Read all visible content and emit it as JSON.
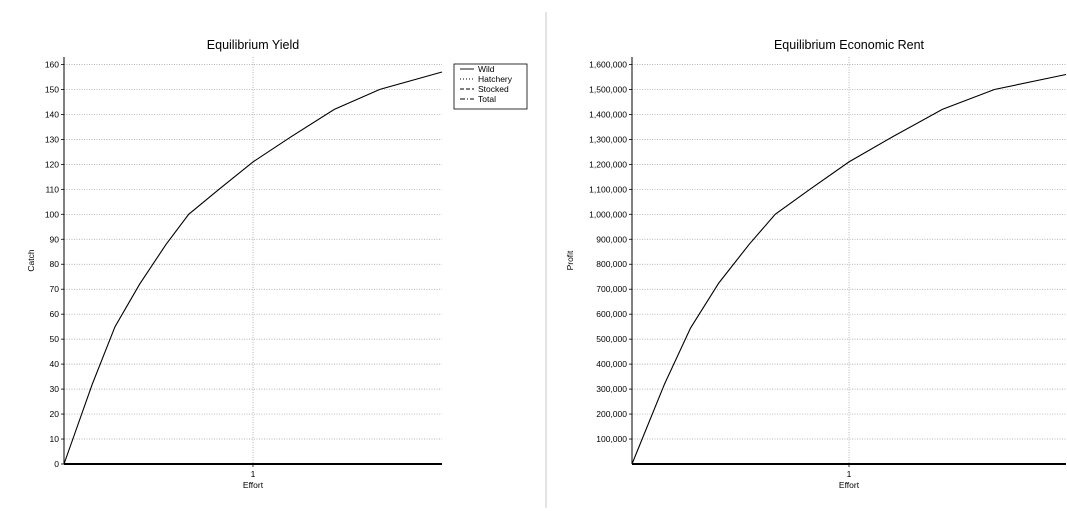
{
  "chart_data": [
    {
      "type": "line",
      "title": "Equilibrium Yield",
      "xlabel": "Effort",
      "ylabel": "Catch",
      "xlim": [
        0,
        2
      ],
      "ylim": [
        0,
        163
      ],
      "xticks": [
        1
      ],
      "xtick_labels": [
        "1"
      ],
      "yticks": [
        0,
        10,
        20,
        30,
        40,
        50,
        60,
        70,
        80,
        90,
        100,
        110,
        120,
        130,
        140,
        150,
        160
      ],
      "ytick_labels": [
        "0",
        "10",
        "20",
        "30",
        "40",
        "50",
        "60",
        "70",
        "80",
        "90",
        "100",
        "110",
        "120",
        "130",
        "140",
        "150",
        "160"
      ],
      "grid": true,
      "legend": {
        "placement": "top-right outside",
        "entries": [
          {
            "label": "Wild",
            "dash": "solid"
          },
          {
            "label": "Hatchery",
            "dash": "dotted"
          },
          {
            "label": "Stocked",
            "dash": "dashed"
          },
          {
            "label": "Total",
            "dash": "dashdot"
          }
        ]
      },
      "series": [
        {
          "name": "Wild",
          "x": [
            0,
            0.15,
            0.27,
            0.4,
            0.54,
            0.66,
            0.82,
            1.0,
            1.2,
            1.43,
            1.67,
            2.0
          ],
          "y": [
            0,
            32,
            55,
            72,
            88,
            100,
            110,
            121,
            131,
            142,
            150,
            157
          ]
        }
      ]
    },
    {
      "type": "line",
      "title": "Equilibrium Economic Rent",
      "xlabel": "Effort",
      "ylabel": "Profit",
      "xlim": [
        0,
        2
      ],
      "ylim": [
        0,
        1630000
      ],
      "xticks": [
        1
      ],
      "xtick_labels": [
        "1"
      ],
      "yticks": [
        100000,
        200000,
        300000,
        400000,
        500000,
        600000,
        700000,
        800000,
        900000,
        1000000,
        1100000,
        1200000,
        1300000,
        1400000,
        1500000,
        1600000
      ],
      "ytick_labels": [
        "100,000",
        "200,000",
        "300,000",
        "400,000",
        "500,000",
        "600,000",
        "700,000",
        "800,000",
        "900,000",
        "1,000,000",
        "1,100,000",
        "1,200,000",
        "1,300,000",
        "1,400,000",
        "1,500,000",
        "1,600,000"
      ],
      "grid": true,
      "series": [
        {
          "x": [
            0,
            0.15,
            0.27,
            0.4,
            0.54,
            0.66,
            0.82,
            1.0,
            1.2,
            1.43,
            1.67,
            2.0
          ],
          "y": [
            0,
            320000,
            545000,
            725000,
            880000,
            1000000,
            1100000,
            1210000,
            1310000,
            1420000,
            1500000,
            1560000
          ]
        }
      ]
    }
  ]
}
